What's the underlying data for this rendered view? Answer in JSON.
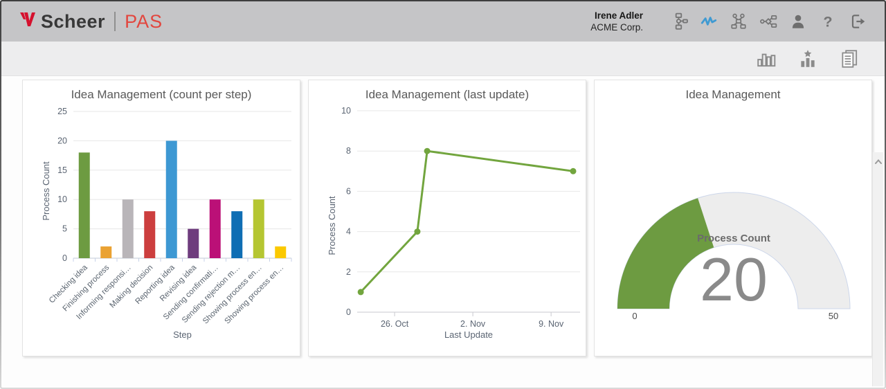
{
  "header": {
    "logo": {
      "brand": "Scheer",
      "product": "PAS",
      "mark_color": "#d5112e",
      "product_color": "#e2463e"
    },
    "user": {
      "name": "Irene Adler",
      "company": "ACME Corp."
    },
    "icons": [
      {
        "name": "process-tree-icon",
        "active": false
      },
      {
        "name": "activity-monitor-icon",
        "active": true
      },
      {
        "name": "org-chart-icon",
        "active": false
      },
      {
        "name": "process-diagram-icon",
        "active": false
      },
      {
        "name": "user-icon",
        "active": false
      },
      {
        "name": "help-icon",
        "active": false
      },
      {
        "name": "logout-icon",
        "active": false
      }
    ],
    "active_icon_color": "#3f9ad2",
    "inactive_icon_color": "#757575"
  },
  "toolbar": {
    "icons": [
      "bar-chart-icon",
      "ranking-chart-icon",
      "report-icon"
    ],
    "icon_color": "#8b8b8b"
  },
  "scrollbar": {
    "icon": "chevron-up-icon"
  },
  "chart_data": [
    {
      "type": "bar",
      "title": "Idea Management (count per step)",
      "xlabel": "Step",
      "ylabel": "Process Count",
      "ylim": [
        0,
        25
      ],
      "yticks": [
        0,
        5,
        10,
        15,
        20,
        25
      ],
      "grid": true,
      "categories": [
        "Checking idea",
        "Finishing process",
        "Informing responsi…",
        "Making decision",
        "Reporting idea",
        "Revising idea",
        "Sending confirmati…",
        "Sending rejection m…",
        "Showing process en…",
        "Showing process en…"
      ],
      "values": [
        18,
        2,
        10,
        8,
        20,
        5,
        10,
        8,
        10,
        2
      ],
      "colors": [
        "#6d9b41",
        "#eaa233",
        "#b9b5b9",
        "#cc3e3e",
        "#3d98d3",
        "#6e3c7d",
        "#bb1077",
        "#0f6eb4",
        "#b5c632",
        "#fbc900"
      ]
    },
    {
      "type": "line",
      "title": "Idea Management (last update)",
      "xlabel": "Last Update",
      "ylabel": "Process Count",
      "ylim": [
        0,
        10
      ],
      "yticks": [
        0,
        2,
        4,
        6,
        8,
        10
      ],
      "grid": true,
      "line_color": "#72a53e",
      "xticks": [
        {
          "label": "26. Oct",
          "pos": 0.168
        },
        {
          "label": "2. Nov",
          "pos": 0.519
        },
        {
          "label": "9. Nov",
          "pos": 0.87
        }
      ],
      "points": [
        {
          "date": "23. Oct",
          "x": 0.016,
          "y": 1
        },
        {
          "date": "28. Oct",
          "x": 0.27,
          "y": 4
        },
        {
          "date": "29. Oct",
          "x": 0.314,
          "y": 8
        },
        {
          "date": "11. Nov",
          "x": 0.969,
          "y": 7
        }
      ]
    },
    {
      "type": "gauge",
      "title": "Idea Management",
      "label": "Process Count",
      "value": 20,
      "min": 0,
      "max": 50,
      "value_color": "#6d9b41",
      "track_color": "#ededed",
      "track_stroke": "#ccd6ea"
    }
  ]
}
